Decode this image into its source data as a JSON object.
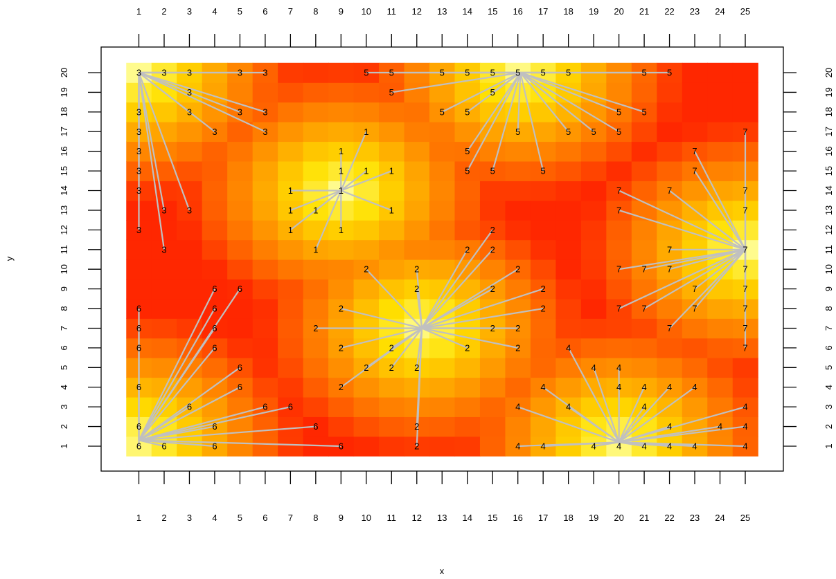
{
  "chart_data": {
    "type": "heatmap",
    "title": "",
    "xlabel": "x",
    "ylabel": "y",
    "xlim": [
      1,
      25
    ],
    "ylim": [
      1,
      20
    ],
    "x_ticks": [
      1,
      2,
      3,
      4,
      5,
      6,
      7,
      8,
      9,
      10,
      11,
      12,
      13,
      14,
      15,
      16,
      17,
      18,
      19,
      20,
      21,
      22,
      23,
      24,
      25
    ],
    "y_ticks": [
      1,
      2,
      3,
      4,
      5,
      6,
      7,
      8,
      9,
      10,
      11,
      12,
      13,
      14,
      15,
      16,
      17,
      18,
      19,
      20
    ],
    "colors": {
      "line": "#c0c0c0",
      "palette": [
        "#ff2200",
        "#ff6600",
        "#ffa200",
        "#ffe000",
        "#ffffa0"
      ]
    },
    "centers": [
      {
        "cluster": "1",
        "x": 9,
        "y": 14
      },
      {
        "cluster": "2",
        "x": 12.2,
        "y": 7
      },
      {
        "cluster": "3",
        "x": 1,
        "y": 20
      },
      {
        "cluster": "4",
        "x": 20,
        "y": 1.2
      },
      {
        "cluster": "5",
        "x": 16.1,
        "y": 20
      },
      {
        "cluster": "6",
        "x": 1,
        "y": 1.3
      },
      {
        "cluster": "7",
        "x": 25,
        "y": 11
      }
    ],
    "points": [
      {
        "x": 1,
        "y": 20,
        "label": "3"
      },
      {
        "x": 2,
        "y": 20,
        "label": "3"
      },
      {
        "x": 3,
        "y": 20,
        "label": "3"
      },
      {
        "x": 5,
        "y": 20,
        "label": "3"
      },
      {
        "x": 6,
        "y": 20,
        "label": "3"
      },
      {
        "x": 10,
        "y": 20,
        "label": "5"
      },
      {
        "x": 11,
        "y": 20,
        "label": "5"
      },
      {
        "x": 13,
        "y": 20,
        "label": "5"
      },
      {
        "x": 14,
        "y": 20,
        "label": "5"
      },
      {
        "x": 15,
        "y": 20,
        "label": "5"
      },
      {
        "x": 16,
        "y": 20,
        "label": "5"
      },
      {
        "x": 17,
        "y": 20,
        "label": "5"
      },
      {
        "x": 18,
        "y": 20,
        "label": "5"
      },
      {
        "x": 21,
        "y": 20,
        "label": "5"
      },
      {
        "x": 22,
        "y": 20,
        "label": "5"
      },
      {
        "x": 3,
        "y": 19,
        "label": "3"
      },
      {
        "x": 11,
        "y": 19,
        "label": "5"
      },
      {
        "x": 15,
        "y": 19,
        "label": "5"
      },
      {
        "x": 1,
        "y": 18,
        "label": "3"
      },
      {
        "x": 3,
        "y": 18,
        "label": "3"
      },
      {
        "x": 5,
        "y": 18,
        "label": "3"
      },
      {
        "x": 6,
        "y": 18,
        "label": "3"
      },
      {
        "x": 13,
        "y": 18,
        "label": "5"
      },
      {
        "x": 14,
        "y": 18,
        "label": "5"
      },
      {
        "x": 20,
        "y": 18,
        "label": "5"
      },
      {
        "x": 21,
        "y": 18,
        "label": "5"
      },
      {
        "x": 1,
        "y": 17,
        "label": "3"
      },
      {
        "x": 4,
        "y": 17,
        "label": "3"
      },
      {
        "x": 6,
        "y": 17,
        "label": "3"
      },
      {
        "x": 10,
        "y": 17,
        "label": "1"
      },
      {
        "x": 16,
        "y": 17,
        "label": "5"
      },
      {
        "x": 18,
        "y": 17,
        "label": "5"
      },
      {
        "x": 19,
        "y": 17,
        "label": "5"
      },
      {
        "x": 20,
        "y": 17,
        "label": "5"
      },
      {
        "x": 25,
        "y": 17,
        "label": "7"
      },
      {
        "x": 1,
        "y": 16,
        "label": "3"
      },
      {
        "x": 9,
        "y": 16,
        "label": "1"
      },
      {
        "x": 14,
        "y": 16,
        "label": "5"
      },
      {
        "x": 23,
        "y": 16,
        "label": "7"
      },
      {
        "x": 1,
        "y": 15,
        "label": "3"
      },
      {
        "x": 9,
        "y": 15,
        "label": "1"
      },
      {
        "x": 10,
        "y": 15,
        "label": "1"
      },
      {
        "x": 11,
        "y": 15,
        "label": "1"
      },
      {
        "x": 14,
        "y": 15,
        "label": "5"
      },
      {
        "x": 15,
        "y": 15,
        "label": "5"
      },
      {
        "x": 17,
        "y": 15,
        "label": "5"
      },
      {
        "x": 23,
        "y": 15,
        "label": "7"
      },
      {
        "x": 1,
        "y": 14,
        "label": "3"
      },
      {
        "x": 7,
        "y": 14,
        "label": "1"
      },
      {
        "x": 9,
        "y": 14,
        "label": "1"
      },
      {
        "x": 20,
        "y": 14,
        "label": "7"
      },
      {
        "x": 22,
        "y": 14,
        "label": "7"
      },
      {
        "x": 25,
        "y": 14,
        "label": "7"
      },
      {
        "x": 2,
        "y": 13,
        "label": "3"
      },
      {
        "x": 3,
        "y": 13,
        "label": "3"
      },
      {
        "x": 7,
        "y": 13,
        "label": "1"
      },
      {
        "x": 8,
        "y": 13,
        "label": "1"
      },
      {
        "x": 11,
        "y": 13,
        "label": "1"
      },
      {
        "x": 20,
        "y": 13,
        "label": "7"
      },
      {
        "x": 25,
        "y": 13,
        "label": "7"
      },
      {
        "x": 1,
        "y": 12,
        "label": "3"
      },
      {
        "x": 7,
        "y": 12,
        "label": "1"
      },
      {
        "x": 9,
        "y": 12,
        "label": "1"
      },
      {
        "x": 15,
        "y": 12,
        "label": "2"
      },
      {
        "x": 2,
        "y": 11,
        "label": "3"
      },
      {
        "x": 8,
        "y": 11,
        "label": "1"
      },
      {
        "x": 14,
        "y": 11,
        "label": "2"
      },
      {
        "x": 15,
        "y": 11,
        "label": "2"
      },
      {
        "x": 22,
        "y": 11,
        "label": "7"
      },
      {
        "x": 25,
        "y": 11,
        "label": "7"
      },
      {
        "x": 10,
        "y": 10,
        "label": "2"
      },
      {
        "x": 12,
        "y": 10,
        "label": "2"
      },
      {
        "x": 16,
        "y": 10,
        "label": "2"
      },
      {
        "x": 20,
        "y": 10,
        "label": "7"
      },
      {
        "x": 21,
        "y": 10,
        "label": "7"
      },
      {
        "x": 22,
        "y": 10,
        "label": "7"
      },
      {
        "x": 25,
        "y": 10,
        "label": "7"
      },
      {
        "x": 4,
        "y": 9,
        "label": "6"
      },
      {
        "x": 5,
        "y": 9,
        "label": "6"
      },
      {
        "x": 12,
        "y": 9,
        "label": "2"
      },
      {
        "x": 15,
        "y": 9,
        "label": "2"
      },
      {
        "x": 17,
        "y": 9,
        "label": "2"
      },
      {
        "x": 23,
        "y": 9,
        "label": "7"
      },
      {
        "x": 25,
        "y": 9,
        "label": "7"
      },
      {
        "x": 1,
        "y": 8,
        "label": "6"
      },
      {
        "x": 4,
        "y": 8,
        "label": "6"
      },
      {
        "x": 9,
        "y": 8,
        "label": "2"
      },
      {
        "x": 17,
        "y": 8,
        "label": "2"
      },
      {
        "x": 20,
        "y": 8,
        "label": "7"
      },
      {
        "x": 21,
        "y": 8,
        "label": "7"
      },
      {
        "x": 23,
        "y": 8,
        "label": "7"
      },
      {
        "x": 25,
        "y": 8,
        "label": "7"
      },
      {
        "x": 1,
        "y": 7,
        "label": "6"
      },
      {
        "x": 4,
        "y": 7,
        "label": "6"
      },
      {
        "x": 8,
        "y": 7,
        "label": "2"
      },
      {
        "x": 15,
        "y": 7,
        "label": "2"
      },
      {
        "x": 16,
        "y": 7,
        "label": "2"
      },
      {
        "x": 22,
        "y": 7,
        "label": "7"
      },
      {
        "x": 25,
        "y": 7,
        "label": "7"
      },
      {
        "x": 1,
        "y": 6,
        "label": "6"
      },
      {
        "x": 4,
        "y": 6,
        "label": "6"
      },
      {
        "x": 9,
        "y": 6,
        "label": "2"
      },
      {
        "x": 11,
        "y": 6,
        "label": "2"
      },
      {
        "x": 14,
        "y": 6,
        "label": "2"
      },
      {
        "x": 16,
        "y": 6,
        "label": "2"
      },
      {
        "x": 18,
        "y": 6,
        "label": "4"
      },
      {
        "x": 25,
        "y": 6,
        "label": "7"
      },
      {
        "x": 5,
        "y": 5,
        "label": "6"
      },
      {
        "x": 10,
        "y": 5,
        "label": "2"
      },
      {
        "x": 11,
        "y": 5,
        "label": "2"
      },
      {
        "x": 12,
        "y": 5,
        "label": "2"
      },
      {
        "x": 19,
        "y": 5,
        "label": "4"
      },
      {
        "x": 20,
        "y": 5,
        "label": "4"
      },
      {
        "x": 1,
        "y": 4,
        "label": "6"
      },
      {
        "x": 5,
        "y": 4,
        "label": "6"
      },
      {
        "x": 9,
        "y": 4,
        "label": "2"
      },
      {
        "x": 17,
        "y": 4,
        "label": "4"
      },
      {
        "x": 20,
        "y": 4,
        "label": "4"
      },
      {
        "x": 21,
        "y": 4,
        "label": "4"
      },
      {
        "x": 22,
        "y": 4,
        "label": "4"
      },
      {
        "x": 23,
        "y": 4,
        "label": "4"
      },
      {
        "x": 3,
        "y": 3,
        "label": "6"
      },
      {
        "x": 6,
        "y": 3,
        "label": "6"
      },
      {
        "x": 7,
        "y": 3,
        "label": "6"
      },
      {
        "x": 16,
        "y": 3,
        "label": "4"
      },
      {
        "x": 18,
        "y": 3,
        "label": "4"
      },
      {
        "x": 21,
        "y": 3,
        "label": "4"
      },
      {
        "x": 25,
        "y": 3,
        "label": "4"
      },
      {
        "x": 1,
        "y": 2,
        "label": "6"
      },
      {
        "x": 4,
        "y": 2,
        "label": "6"
      },
      {
        "x": 8,
        "y": 2,
        "label": "6"
      },
      {
        "x": 12,
        "y": 2,
        "label": "2"
      },
      {
        "x": 22,
        "y": 2,
        "label": "4"
      },
      {
        "x": 24,
        "y": 2,
        "label": "4"
      },
      {
        "x": 25,
        "y": 2,
        "label": "4"
      },
      {
        "x": 1,
        "y": 1,
        "label": "6"
      },
      {
        "x": 2,
        "y": 1,
        "label": "6"
      },
      {
        "x": 4,
        "y": 1,
        "label": "6"
      },
      {
        "x": 9,
        "y": 1,
        "label": "6"
      },
      {
        "x": 12,
        "y": 1,
        "label": "2"
      },
      {
        "x": 16,
        "y": 1,
        "label": "4"
      },
      {
        "x": 17,
        "y": 1,
        "label": "4"
      },
      {
        "x": 19,
        "y": 1,
        "label": "4"
      },
      {
        "x": 20,
        "y": 1,
        "label": "4"
      },
      {
        "x": 21,
        "y": 1,
        "label": "4"
      },
      {
        "x": 22,
        "y": 1,
        "label": "4"
      },
      {
        "x": 23,
        "y": 1,
        "label": "4"
      },
      {
        "x": 25,
        "y": 1,
        "label": "4"
      }
    ],
    "grid": false,
    "legend": "none"
  }
}
